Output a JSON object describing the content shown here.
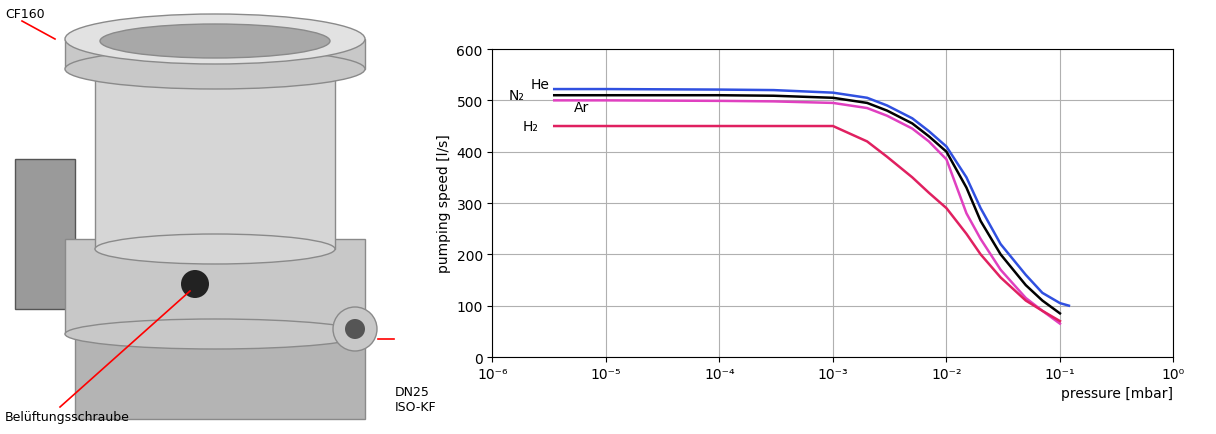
{
  "chart_data": {
    "type": "line",
    "x_label": "pressure [mbar]",
    "y_label": "pumping speed [l/s]",
    "log": "x",
    "grid": true,
    "xlim": [
      1e-06,
      1
    ],
    "ylim": [
      0,
      600
    ],
    "xticks": [
      {
        "value": 1e-06,
        "label": "10⁻⁶"
      },
      {
        "value": 1e-05,
        "label": "10⁻⁵"
      },
      {
        "value": 0.0001,
        "label": "10⁻⁴"
      },
      {
        "value": 0.001,
        "label": "10⁻³"
      },
      {
        "value": 0.01,
        "label": "10⁻²"
      },
      {
        "value": 0.1,
        "label": "10⁻¹"
      },
      {
        "value": 1,
        "label": "10⁰"
      }
    ],
    "yticks": [
      0,
      100,
      200,
      300,
      400,
      500,
      600
    ],
    "series": [
      {
        "name": "He",
        "color": "#3050e0",
        "x": [
          3.5e-06,
          1e-05,
          0.0001,
          0.0003,
          0.001,
          0.002,
          0.003,
          0.005,
          0.007,
          0.01,
          0.015,
          0.02,
          0.03,
          0.05,
          0.07,
          0.1,
          0.12
        ],
        "values": [
          522,
          522,
          521,
          520,
          515,
          505,
          490,
          465,
          440,
          410,
          350,
          290,
          220,
          160,
          125,
          105,
          100
        ]
      },
      {
        "name": "N₂",
        "color": "#000000",
        "x": [
          3.5e-06,
          1e-05,
          0.0001,
          0.0003,
          0.001,
          0.002,
          0.003,
          0.005,
          0.007,
          0.01,
          0.015,
          0.02,
          0.03,
          0.05,
          0.07,
          0.1
        ],
        "values": [
          510,
          510,
          510,
          509,
          505,
          495,
          480,
          455,
          430,
          400,
          330,
          265,
          200,
          140,
          110,
          85
        ]
      },
      {
        "name": "Ar",
        "color": "#e040c0",
        "x": [
          3.5e-06,
          1e-05,
          0.0001,
          0.0003,
          0.001,
          0.002,
          0.003,
          0.005,
          0.007,
          0.01,
          0.015,
          0.02,
          0.03,
          0.05,
          0.07,
          0.1
        ],
        "values": [
          500,
          500,
          499,
          498,
          495,
          485,
          470,
          445,
          420,
          385,
          280,
          230,
          170,
          115,
          90,
          65
        ]
      },
      {
        "name": "H₂",
        "color": "#e02060",
        "x": [
          3.5e-06,
          1e-05,
          0.0001,
          0.0003,
          0.001,
          0.002,
          0.003,
          0.005,
          0.007,
          0.01,
          0.015,
          0.02,
          0.03,
          0.05,
          0.07,
          0.1
        ],
        "values": [
          450,
          450,
          450,
          450,
          450,
          420,
          390,
          350,
          320,
          290,
          240,
          200,
          155,
          110,
          90,
          70
        ]
      }
    ]
  },
  "photo": {
    "labels": [
      "CF160",
      "Belüftungsschraube",
      "DN25\nISO-KF"
    ]
  }
}
